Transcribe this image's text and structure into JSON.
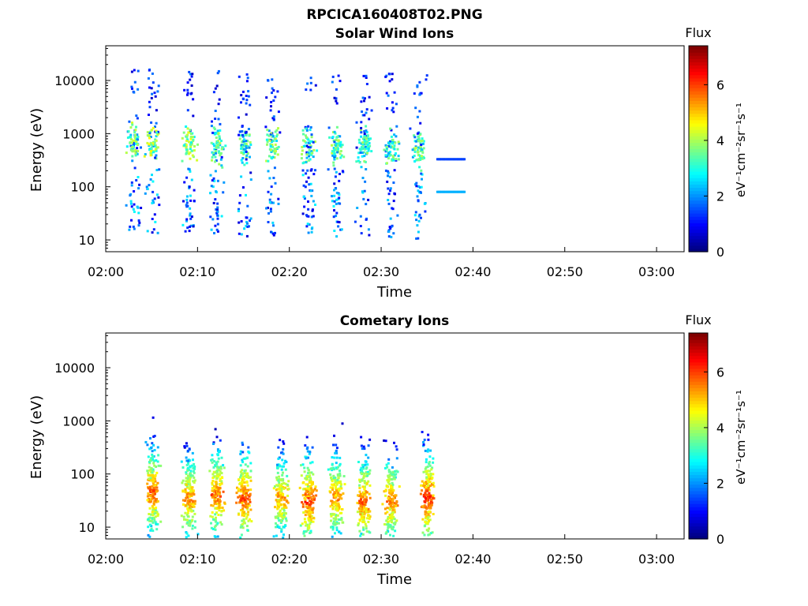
{
  "figure": {
    "title": "RPCICA160408T02.PNG"
  },
  "colors": {
    "colormap": "jet",
    "axis": "#000000",
    "background": "#ffffff"
  },
  "chart_data": [
    {
      "type": "heatmap",
      "title": "Solar Wind Ions",
      "xlabel": "Time",
      "ylabel": "Energy (eV)",
      "x_unit": "minutes after 02:00",
      "xlim": [
        "02:00",
        "03:03"
      ],
      "x_tick_labels": [
        "02:00",
        "02:10",
        "02:20",
        "02:30",
        "02:40",
        "02:50",
        "03:00"
      ],
      "y_scale": "log",
      "ylim": [
        6,
        45000
      ],
      "y_tick_labels": [
        "10",
        "100",
        "1000",
        "10000"
      ],
      "colorbar": {
        "label": "eV⁻¹cm⁻²sr⁻¹s⁻¹",
        "title": "Flux",
        "range": [
          0,
          7.4
        ],
        "tick_labels": [
          "0",
          "2",
          "4",
          "6"
        ]
      },
      "bursts": [
        {
          "t": "02:03",
          "peak_energy_eV": 700,
          "peak_flux": 4.4
        },
        {
          "t": "02:05",
          "peak_energy_eV": 650,
          "peak_flux": 4.8
        },
        {
          "t": "02:09",
          "peak_energy_eV": 650,
          "peak_flux": 4.6
        },
        {
          "t": "02:12",
          "peak_energy_eV": 600,
          "peak_flux": 4.2
        },
        {
          "t": "02:15",
          "peak_energy_eV": 550,
          "peak_flux": 4.0
        },
        {
          "t": "02:18",
          "peak_energy_eV": 600,
          "peak_flux": 4.3
        },
        {
          "t": "02:22",
          "peak_energy_eV": 550,
          "peak_flux": 4.1
        },
        {
          "t": "02:25",
          "peak_energy_eV": 550,
          "peak_flux": 4.2
        },
        {
          "t": "02:28",
          "peak_energy_eV": 600,
          "peak_flux": 4.0
        },
        {
          "t": "02:31",
          "peak_energy_eV": 550,
          "peak_flux": 4.1
        },
        {
          "t": "02:34",
          "peak_energy_eV": 500,
          "peak_flux": 4.3
        }
      ],
      "bands": [
        {
          "t_start": "02:36",
          "t_end": "02:39",
          "energy_eV": 330,
          "flux": 1.4
        },
        {
          "t_start": "02:36",
          "t_end": "02:39",
          "energy_eV": 80,
          "flux": 2.2
        }
      ]
    },
    {
      "type": "heatmap",
      "title": "Cometary Ions",
      "xlabel": "Time",
      "ylabel": "Energy (eV)",
      "x_unit": "minutes after 02:00",
      "xlim": [
        "02:00",
        "03:03"
      ],
      "x_tick_labels": [
        "02:00",
        "02:10",
        "02:20",
        "02:30",
        "02:40",
        "02:50",
        "03:00"
      ],
      "y_scale": "log",
      "ylim": [
        6,
        45000
      ],
      "y_tick_labels": [
        "10",
        "100",
        "1000",
        "10000"
      ],
      "colorbar": {
        "label": "eV⁻¹cm⁻²sr⁻¹s⁻¹",
        "title": "Flux",
        "range": [
          0,
          7.4
        ],
        "tick_labels": [
          "0",
          "2",
          "4",
          "6"
        ]
      },
      "bursts": [
        {
          "t": "02:05",
          "peak_energy_eV": 45,
          "peak_flux": 6.3
        },
        {
          "t": "02:09",
          "peak_energy_eV": 35,
          "peak_flux": 6.0
        },
        {
          "t": "02:12",
          "peak_energy_eV": 40,
          "peak_flux": 6.2
        },
        {
          "t": "02:15",
          "peak_energy_eV": 35,
          "peak_flux": 6.4
        },
        {
          "t": "02:19",
          "peak_energy_eV": 35,
          "peak_flux": 5.8
        },
        {
          "t": "02:22",
          "peak_energy_eV": 30,
          "peak_flux": 6.5
        },
        {
          "t": "02:25",
          "peak_energy_eV": 35,
          "peak_flux": 6.0
        },
        {
          "t": "02:28",
          "peak_energy_eV": 30,
          "peak_flux": 6.3
        },
        {
          "t": "02:31",
          "peak_energy_eV": 30,
          "peak_flux": 6.1
        },
        {
          "t": "02:35",
          "peak_energy_eV": 35,
          "peak_flux": 6.6
        }
      ]
    }
  ]
}
